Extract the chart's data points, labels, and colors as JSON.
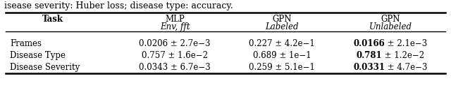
{
  "caption_text": "isease severity: Huber loss; disease type: accuracy.",
  "rows": [
    {
      "task": "Frames",
      "mlp": "0.0206 ± 2.7e−3",
      "gpn_labeled": "0.227 ± 4.2e−1",
      "gpn_unlabeled_bold": "0.0166",
      "gpn_unlabeled_std": " ± 2.1e−3"
    },
    {
      "task": "Disease Type",
      "mlp": "0.757 ± 1.6e−2",
      "gpn_labeled": "0.689 ± 1e−1",
      "gpn_unlabeled_bold": "0.781",
      "gpn_unlabeled_std": " ± 1.2e−2"
    },
    {
      "task": "Disease Severity",
      "mlp": "0.0343 ± 6.7e−3",
      "gpn_labeled": "0.259 ± 5.1e−1",
      "gpn_unlabeled_bold": "0.0331",
      "gpn_unlabeled_std": " ± 4.7e−3"
    }
  ],
  "fig_width": 6.4,
  "fig_height": 1.36,
  "dpi": 100,
  "background_color": "#ffffff",
  "text_color": "#000000",
  "font_size": 8.5,
  "caption_font_size": 9.0
}
